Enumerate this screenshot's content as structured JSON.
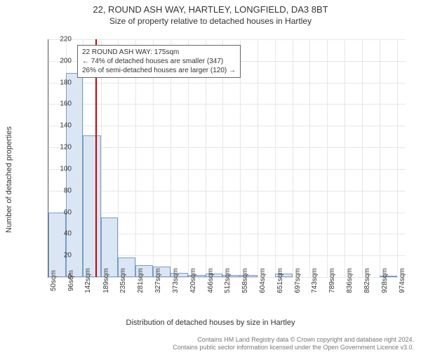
{
  "title_main": "22, ROUND ASH WAY, HARTLEY, LONGFIELD, DA3 8BT",
  "title_sub": "Size of property relative to detached houses in Hartley",
  "y_axis_label": "Number of detached properties",
  "x_axis_label": "Distribution of detached houses by size in Hartley",
  "chart": {
    "type": "histogram",
    "ylim": [
      0,
      220
    ],
    "ytick_step": 20,
    "y_ticks": [
      0,
      20,
      40,
      60,
      80,
      100,
      120,
      140,
      160,
      180,
      200,
      220
    ],
    "x_ticks": [
      "50sqm",
      "96sqm",
      "142sqm",
      "189sqm",
      "235sqm",
      "281sqm",
      "327sqm",
      "373sqm",
      "420sqm",
      "466sqm",
      "512sqm",
      "558sqm",
      "604sqm",
      "651sqm",
      "697sqm",
      "743sqm",
      "789sqm",
      "836sqm",
      "882sqm",
      "928sqm",
      "974sqm"
    ],
    "x_min": 50,
    "x_max": 997,
    "bar_color": "#dbe6f4",
    "bar_border": "#7a9cc6",
    "background_color": "#ffffff",
    "grid_color": "#e6e6e6",
    "reference_line": {
      "value": 175,
      "color": "#cc0000"
    },
    "bars": [
      {
        "x0": 50,
        "x1": 96,
        "count": 60
      },
      {
        "x0": 96,
        "x1": 142,
        "count": 189
      },
      {
        "x0": 142,
        "x1": 189,
        "count": 131
      },
      {
        "x0": 189,
        "x1": 235,
        "count": 55
      },
      {
        "x0": 235,
        "x1": 281,
        "count": 18
      },
      {
        "x0": 281,
        "x1": 327,
        "count": 11
      },
      {
        "x0": 327,
        "x1": 373,
        "count": 10
      },
      {
        "x0": 373,
        "x1": 420,
        "count": 4
      },
      {
        "x0": 420,
        "x1": 466,
        "count": 2
      },
      {
        "x0": 466,
        "x1": 512,
        "count": 3
      },
      {
        "x0": 512,
        "x1": 558,
        "count": 2
      },
      {
        "x0": 558,
        "x1": 604,
        "count": 2
      },
      {
        "x0": 604,
        "x1": 651,
        "count": 0
      },
      {
        "x0": 651,
        "x1": 697,
        "count": 3
      },
      {
        "x0": 697,
        "x1": 743,
        "count": 0
      },
      {
        "x0": 743,
        "x1": 789,
        "count": 0
      },
      {
        "x0": 789,
        "x1": 836,
        "count": 0
      },
      {
        "x0": 836,
        "x1": 882,
        "count": 0
      },
      {
        "x0": 882,
        "x1": 928,
        "count": 0
      },
      {
        "x0": 928,
        "x1": 974,
        "count": 1
      }
    ]
  },
  "annotation": {
    "line1": "22 ROUND ASH WAY: 175sqm",
    "line2": "← 74% of detached houses are smaller (347)",
    "line3": "26% of semi-detached houses are larger (120) →"
  },
  "footer_line1": "Contains HM Land Registry data © Crown copyright and database right 2024.",
  "footer_line2": "Contains public sector information licensed under the Open Government Licence v3.0."
}
